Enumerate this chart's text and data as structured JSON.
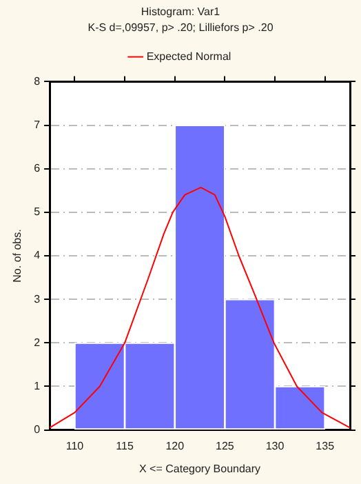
{
  "chart_data": {
    "type": "histogram",
    "title": "Histogram: Var1",
    "subtitle": "K-S d=,09957, p> .20; Lilliefors p> .20",
    "xlabel": "X <= Category Boundary",
    "ylabel": "No. of obs.",
    "bins": [
      110,
      115,
      120,
      125,
      130,
      135
    ],
    "values": [
      2,
      2,
      7,
      3,
      1
    ],
    "color": "#7070ff",
    "series": [
      {
        "name": "Expected Normal",
        "type": "line",
        "color": "#ff0000",
        "x": [
          107.5,
          110,
          112.5,
          115,
          117.3,
          118.9,
          119.8,
          121,
          122.6,
          124,
          125,
          126.4,
          128,
          129.9,
          132.2,
          134.7,
          137.5
        ],
        "values": [
          0.05,
          0.4,
          1.0,
          2.0,
          3.45,
          4.5,
          5.0,
          5.4,
          5.57,
          5.4,
          4.9,
          4.0,
          3.1,
          2.0,
          1.0,
          0.4,
          0.05
        ]
      }
    ],
    "xlim": [
      107.5,
      137.5
    ],
    "xticks": [
      110,
      115,
      120,
      125,
      130,
      135
    ],
    "ylim": [
      0,
      8
    ],
    "yticks": [
      0,
      1,
      2,
      3,
      4,
      5,
      6,
      7,
      8
    ],
    "grid": "y",
    "legend": "top",
    "marker": "none"
  }
}
